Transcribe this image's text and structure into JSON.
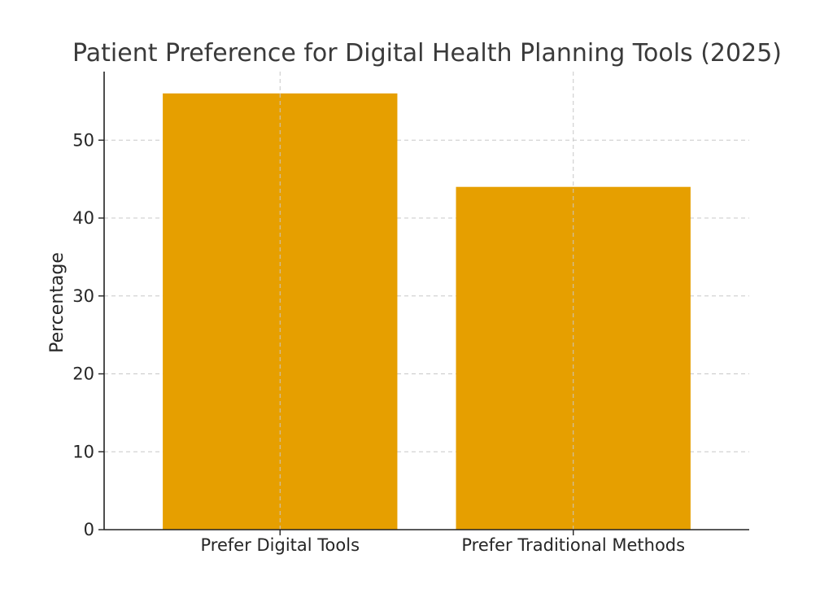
{
  "chart_data": {
    "type": "bar",
    "title": "Patient Preference for Digital Health Planning Tools (2025)",
    "xlabel": "",
    "ylabel": "Percentage",
    "categories": [
      "Prefer Digital Tools",
      "Prefer Traditional Methods"
    ],
    "values": [
      56,
      44
    ],
    "ylim": [
      0,
      58.8
    ],
    "yticks": [
      0,
      10,
      20,
      30,
      40,
      50
    ],
    "grid": true,
    "bar_color": "#E69F00"
  }
}
